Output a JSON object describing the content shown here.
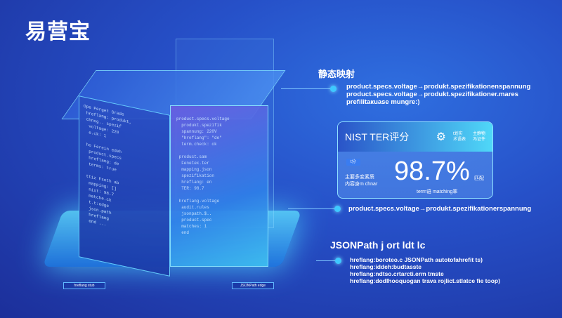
{
  "brand": "易营宝",
  "mapping": {
    "title": "静态映射",
    "lines": [
      "product.specs.voltage→produkt.spezifikationenspannung",
      "product.specs.voltage→produkt.spezifikationer.mares",
      "prefilitaкuase mungre:)"
    ]
  },
  "card": {
    "title": "NIST TER评分",
    "icon_tag": "⚙",
    "head_notes": [
      "t划实",
      "术语表"
    ],
    "head_notes2": [
      "主静物",
      "冯证件"
    ],
    "badge": "t分",
    "left_labels": [
      "主要多变素质",
      "内容身m chnar"
    ],
    "score": "98.7%",
    "score_label_1": "匹配",
    "score_label_2": "term语 matching率"
  },
  "mapping2": "product.specs.voltage→produkt.spezifikationerspannung",
  "jsonpath": {
    "title": "JSONPath j ort ldt lc",
    "lines": [
      "hreflang:boroteo.c JSONPath autotofahrefit ts)",
      "hreflang:iddeh:budtasste",
      "hreflang:ndtso.crtarcti.erm tmste",
      "hreflang:dodlhooquogan trava rojlict.stlatce fie toop)"
    ]
  },
  "platform_labels": [
    "hreflang stub",
    "JSONPath edge"
  ],
  "code_left": "Ope Perget Grade\n hreflang: produkt,\n chnog.. spezif\n  voltage: 220\n  e.ck: 1\n\n ho Ferein edeh\n  product.specs\n  hreflang: de\n  terms: true\n\n ttiz Fseth ab\n  mapping: []\n  nist: 98.7\n  matche.ck\n  t.t:edge\n  json.path\n  hreflang\n  end ...",
  "code_front": "product.specs.voltage\n  produkt.spezifik\n  spannung: 220V\n  \"hreflang\": \"de\"\n  term.check: ok\n\n product.sam\n  Fenetek.ter\n  mapping.json\n  spezifikation\n  hreflang: en\n  TER: 98.7\n\n hreflang.voltage\n  audit.rules\n  jsonpath.$..\n  product.spec\n  matches: 1\n  end"
}
